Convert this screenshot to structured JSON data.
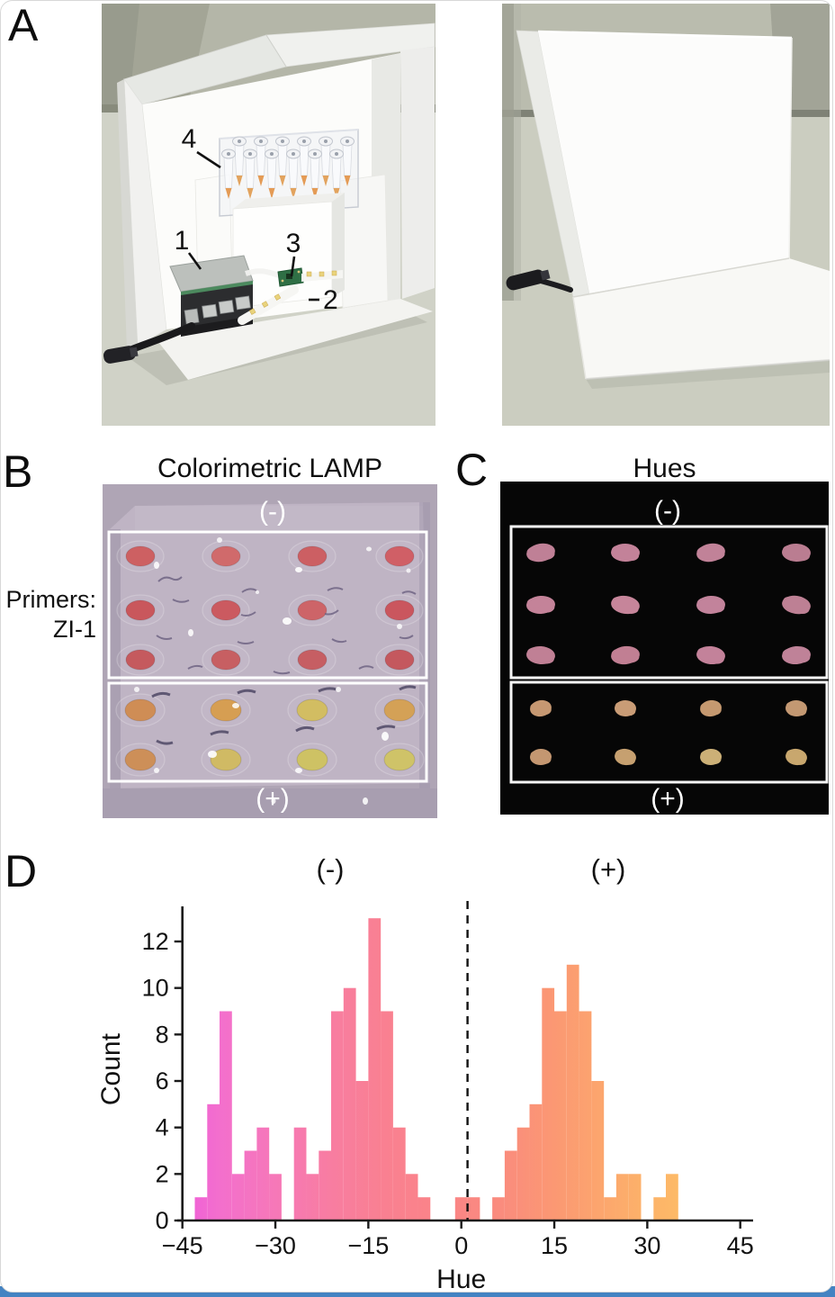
{
  "page": {
    "bottom_bar_color": "#4483c2"
  },
  "panels": {
    "A": {
      "label": "A",
      "callouts": {
        "c1": "1",
        "c2": "2",
        "c3": "3",
        "c4": "4"
      }
    },
    "B": {
      "label": "B",
      "title": "Colorimetric LAMP",
      "primers_line1": "Primers:",
      "primers_line2": "ZI-1",
      "neg": "(-)",
      "pos": "(+)",
      "well_columns": [
        42,
        137,
        233,
        330
      ],
      "neg_rows": [
        80,
        140,
        195
      ],
      "pos_rows": [
        251,
        306
      ],
      "neg_colors": [
        [
          "#cd6062",
          "#d06a6b",
          "#cc5f63",
          "#d05f66"
        ],
        [
          "#c9575c",
          "#cb5a60",
          "#cd6468",
          "#ca565e"
        ],
        [
          "#c55a5e",
          "#c75f62",
          "#c65e63",
          "#c4585e"
        ]
      ],
      "pos_colors": [
        [
          "#cf8d55",
          "#d69e52",
          "#d2bd62",
          "#d4a156"
        ],
        [
          "#cd8f58",
          "#d0ba64",
          "#cec264",
          "#cfc368"
        ]
      ]
    },
    "C": {
      "label": "C",
      "title": "Hues",
      "neg": "(-)",
      "pos": "(+)",
      "blob_columns": [
        45,
        139,
        234,
        329
      ],
      "neg_rows": [
        79,
        137,
        193
      ],
      "pos_rows": [
        252,
        306
      ],
      "neg_colors": [
        [
          "#bf8096",
          "#c38299",
          "#c18298",
          "#ba7d91"
        ],
        [
          "#c48399",
          "#c6859a",
          "#c2839b",
          "#bd8094"
        ],
        [
          "#c08095",
          "#c17f93",
          "#c3829a",
          "#bf8298"
        ]
      ],
      "pos_colors": [
        [
          "#c69872",
          "#c99c76",
          "#c59970",
          "#c39872"
        ],
        [
          "#c49771",
          "#c6a070",
          "#ccb077",
          "#c8a76e"
        ]
      ]
    },
    "D": {
      "label": "D"
    }
  },
  "chart_data": {
    "type": "bar",
    "subtype": "histogram",
    "title": "",
    "xlabel": "Hue",
    "ylabel": "Count",
    "xlim": [
      -47,
      47
    ],
    "ylim": [
      0,
      13.5
    ],
    "grid": false,
    "x_ticks": [
      -45,
      -30,
      -15,
      0,
      15,
      30,
      45
    ],
    "x_tick_labels": [
      "−45",
      "−30",
      "−15",
      "0",
      "15",
      "30",
      "45"
    ],
    "y_ticks": [
      0,
      2,
      4,
      6,
      8,
      10,
      12
    ],
    "y_tick_labels": [
      "0",
      "2",
      "4",
      "6",
      "8",
      "10",
      "12"
    ],
    "bin_width": 2,
    "bins": [
      {
        "x0": -43,
        "count": 1
      },
      {
        "x0": -41,
        "count": 5
      },
      {
        "x0": -39,
        "count": 9
      },
      {
        "x0": -37,
        "count": 2
      },
      {
        "x0": -35,
        "count": 3
      },
      {
        "x0": -33,
        "count": 4
      },
      {
        "x0": -31,
        "count": 2
      },
      {
        "x0": -27,
        "count": 4
      },
      {
        "x0": -25,
        "count": 2
      },
      {
        "x0": -23,
        "count": 3
      },
      {
        "x0": -21,
        "count": 9
      },
      {
        "x0": -19,
        "count": 10
      },
      {
        "x0": -17,
        "count": 6
      },
      {
        "x0": -15,
        "count": 13
      },
      {
        "x0": -13,
        "count": 9
      },
      {
        "x0": -11,
        "count": 4
      },
      {
        "x0": -9,
        "count": 2
      },
      {
        "x0": -7,
        "count": 1
      },
      {
        "x0": -1,
        "count": 1
      },
      {
        "x0": 1,
        "count": 1
      },
      {
        "x0": 5,
        "count": 1
      },
      {
        "x0": 7,
        "count": 3
      },
      {
        "x0": 9,
        "count": 4
      },
      {
        "x0": 11,
        "count": 5
      },
      {
        "x0": 13,
        "count": 10
      },
      {
        "x0": 15,
        "count": 9
      },
      {
        "x0": 17,
        "count": 11
      },
      {
        "x0": 19,
        "count": 9
      },
      {
        "x0": 21,
        "count": 6
      },
      {
        "x0": 23,
        "count": 1
      },
      {
        "x0": 25,
        "count": 2
      },
      {
        "x0": 27,
        "count": 2
      },
      {
        "x0": 31,
        "count": 1
      },
      {
        "x0": 33,
        "count": 2
      }
    ],
    "dashed_line_x": 1,
    "cluster_labels": [
      {
        "text": "(-)",
        "x_hue": -21
      },
      {
        "text": "(+)",
        "x_hue": 24
      }
    ],
    "gradient_stops": [
      {
        "hue": -45,
        "color": "#ef5ed9"
      },
      {
        "hue": -39,
        "color": "#f36fcd"
      },
      {
        "hue": -30,
        "color": "#f678b8"
      },
      {
        "hue": -21,
        "color": "#f87da1"
      },
      {
        "hue": -13,
        "color": "#f98092"
      },
      {
        "hue": -3,
        "color": "#fa8487"
      },
      {
        "hue": 6,
        "color": "#fa8b7e"
      },
      {
        "hue": 15,
        "color": "#fb9873"
      },
      {
        "hue": 25,
        "color": "#fcaa6c"
      },
      {
        "hue": 35,
        "color": "#fdba67"
      }
    ],
    "legend": null
  }
}
